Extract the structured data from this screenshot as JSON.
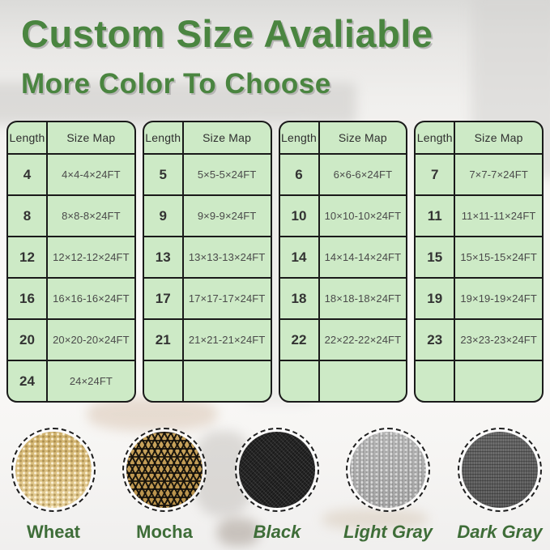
{
  "title": "Custom Size Avaliable",
  "subtitle": "More Color To Choose",
  "colors": {
    "heading_green": "#4a8540",
    "label_green": "#3e6d38",
    "table_cell_bg": "#cdeac6",
    "table_border": "#1a1a1a",
    "wheat": "#d8bd7f",
    "mocha_tan": "#c49d55",
    "mocha_black": "#14110b",
    "black_fabric": "#262626",
    "light_gray_fabric": "#ababab",
    "dark_gray_fabric": "#5d5d5d"
  },
  "tables": [
    {
      "headers": [
        "Length",
        "Size Map"
      ],
      "rows": [
        [
          "4",
          "4×4-4×24FT"
        ],
        [
          "8",
          "8×8-8×24FT"
        ],
        [
          "12",
          "12×12-12×24FT"
        ],
        [
          "16",
          "16×16-16×24FT"
        ],
        [
          "20",
          "20×20-20×24FT"
        ],
        [
          "24",
          "24×24FT"
        ]
      ]
    },
    {
      "headers": [
        "Length",
        "Size Map"
      ],
      "rows": [
        [
          "5",
          "5×5-5×24FT"
        ],
        [
          "9",
          "9×9-9×24FT"
        ],
        [
          "13",
          "13×13-13×24FT"
        ],
        [
          "17",
          "17×17-17×24FT"
        ],
        [
          "21",
          "21×21-21×24FT"
        ],
        [
          "",
          ""
        ]
      ]
    },
    {
      "headers": [
        "Length",
        "Size Map"
      ],
      "rows": [
        [
          "6",
          "6×6-6×24FT"
        ],
        [
          "10",
          "10×10-10×24FT"
        ],
        [
          "14",
          "14×14-14×24FT"
        ],
        [
          "18",
          "18×18-18×24FT"
        ],
        [
          "22",
          "22×22-22×24FT"
        ],
        [
          "",
          ""
        ]
      ]
    },
    {
      "headers": [
        "Length",
        "Size Map"
      ],
      "rows": [
        [
          "7",
          "7×7-7×24FT"
        ],
        [
          "11",
          "11×11-11×24FT"
        ],
        [
          "15",
          "15×15-15×24FT"
        ],
        [
          "19",
          "19×19-19×24FT"
        ],
        [
          "23",
          "23×23-23×24FT"
        ],
        [
          "",
          ""
        ]
      ]
    }
  ],
  "swatches": [
    {
      "label": "Wheat",
      "texture": "wheat",
      "italic": false
    },
    {
      "label": "Mocha",
      "texture": "mocha",
      "italic": false
    },
    {
      "label": "Black",
      "texture": "black",
      "italic": true
    },
    {
      "label": "Light Gray",
      "texture": "light-gray",
      "italic": true
    },
    {
      "label": "Dark Gray",
      "texture": "dark-gray",
      "italic": true
    }
  ]
}
